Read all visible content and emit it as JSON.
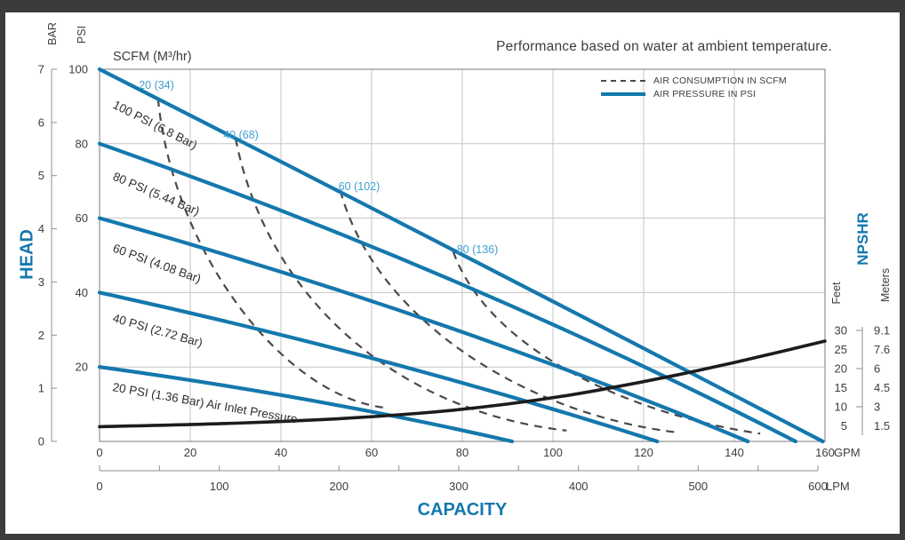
{
  "title": "Performance based on water at ambient temperature.",
  "legend": {
    "air_consumption": "AIR CONSUMPTION IN SCFM",
    "air_pressure": "AIR PRESSURE IN PSI"
  },
  "axis_titles": {
    "head": "HEAD",
    "capacity": "CAPACITY",
    "npshr": "NPSHR",
    "bar": "BAR",
    "psi": "PSI",
    "feet": "Feet",
    "meters": "Meters",
    "scfm": "SCFM (M³/hr)"
  },
  "colors": {
    "curve_blue": "#1478ad",
    "scfm_label_blue": "#3f9fd0",
    "dash_gray": "#4a4a4a",
    "npshr_black": "#1c1c1c",
    "grid": "#c6c6c6",
    "plot_border": "#8f8f8f",
    "text": "#3d3d3d",
    "curve_label_text": "#2f2f2f"
  },
  "chart_data": {
    "type": "line",
    "x_axis": {
      "label": "CAPACITY",
      "gpm_ticks": [
        0,
        20,
        40,
        60,
        80,
        100,
        120,
        140,
        160
      ],
      "gpm_unit": "GPM",
      "gpm_range": [
        0,
        160
      ],
      "lpm_ticks": [
        0,
        100,
        200,
        300,
        400,
        500,
        600
      ],
      "lpm_minor_step": 50,
      "lpm_max": 600,
      "lpm_unit": "LPM"
    },
    "y_axis": {
      "label": "HEAD",
      "psi_ticks": [
        20,
        40,
        60,
        80,
        100
      ],
      "bar_ticks": [
        0,
        1,
        2,
        3,
        4,
        5,
        6,
        7
      ],
      "psi_range": [
        0,
        100
      ],
      "bar_range": [
        0,
        7
      ]
    },
    "right_axis": {
      "label": "NPSHR",
      "feet_ticks": [
        30,
        25,
        20,
        15,
        10,
        5
      ],
      "meters_ticks": [
        "9.1",
        "7.6",
        "6",
        "4.5",
        "3",
        "1.5"
      ],
      "feet_tick_marks": [
        30,
        20,
        10
      ]
    },
    "grid": {
      "gpm_step": 20,
      "psi_step": 20
    },
    "pressure_curves": [
      {
        "label": "100 PSI (6.8 Bar)",
        "psi": 100,
        "start": [
          0,
          100
        ],
        "ctrl": [
          76,
          53
        ],
        "end": [
          159.5,
          0
        ]
      },
      {
        "label": "80 PSI (5.44 Bar)",
        "psi": 80,
        "start": [
          0,
          80
        ],
        "ctrl": [
          80,
          46
        ],
        "end": [
          153.5,
          0
        ]
      },
      {
        "label": "60 PSI (4.08 Bar)",
        "psi": 60,
        "start": [
          0,
          60
        ],
        "ctrl": [
          75,
          34.5
        ],
        "end": [
          143,
          0
        ]
      },
      {
        "label": "40 PSI (2.72 Bar)",
        "psi": 40,
        "start": [
          0,
          40
        ],
        "ctrl": [
          64,
          23
        ],
        "end": [
          123,
          0
        ]
      },
      {
        "label": "20 PSI (1.36 Bar) Air Inlet Pressure",
        "psi": 20,
        "start": [
          0,
          20
        ],
        "ctrl": [
          48,
          12
        ],
        "end": [
          91,
          0
        ]
      }
    ],
    "air_consumption_curves": [
      {
        "label": "20 (34)",
        "scfm": 20,
        "start": [
          12.9,
          92.1
        ],
        "c1": [
          16,
          52
        ],
        "c2": [
          40,
          12
        ],
        "end": [
          63.3,
          9
        ]
      },
      {
        "label": "40 (68)",
        "scfm": 40,
        "start": [
          30,
          81.4
        ],
        "c1": [
          37,
          38
        ],
        "c2": [
          66,
          8
        ],
        "end": [
          103,
          2.9
        ]
      },
      {
        "label": "60 (102)",
        "scfm": 60,
        "start": [
          53.1,
          67.4
        ],
        "c1": [
          61,
          32
        ],
        "c2": [
          95,
          7
        ],
        "end": [
          127.5,
          2.4
        ]
      },
      {
        "label": "80 (136)",
        "scfm": 80,
        "start": [
          78,
          51
        ],
        "c1": [
          86,
          24
        ],
        "c2": [
          118,
          7
        ],
        "end": [
          145.7,
          2.1
        ]
      }
    ],
    "npshr_curve": {
      "units": "gpm_vs_feet",
      "points": [
        [
          0,
          4.8
        ],
        [
          20,
          5.3
        ],
        [
          40,
          6.1
        ],
        [
          60,
          7.3
        ],
        [
          80,
          9.2
        ],
        [
          100,
          12.2
        ],
        [
          120,
          16.5
        ],
        [
          140,
          21.5
        ],
        [
          160,
          27.2
        ]
      ]
    }
  }
}
